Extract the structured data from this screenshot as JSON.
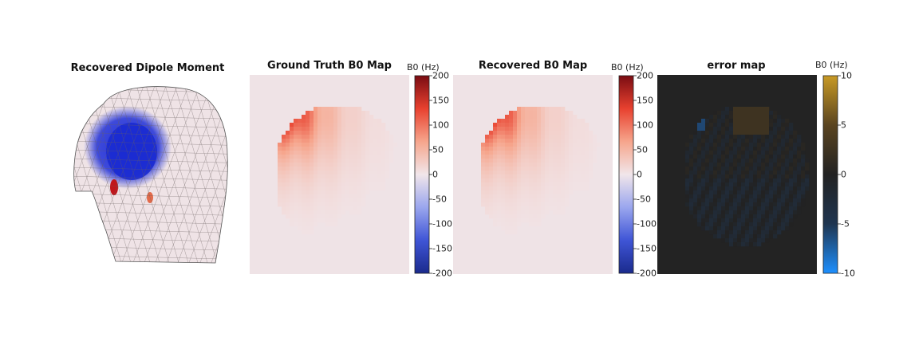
{
  "chart_data": [
    {
      "type": "other",
      "title": "Recovered Dipole Moment",
      "description_kind": "3d-head-mesh",
      "colors": {
        "mesh": "#efe3e6",
        "positive": "#c0161c",
        "negative": "#1f2fd8"
      }
    },
    {
      "type": "heatmap",
      "title": "Ground Truth B0 Map",
      "colorbar": {
        "label": "B0 (Hz)",
        "range": [
          -200,
          200
        ],
        "ticks": [
          200,
          150,
          100,
          50,
          0,
          -50,
          -100,
          -150,
          -200
        ],
        "colormap": [
          "#1a2a8c",
          "#3f55d6",
          "#9aa6ee",
          "#f1e6ea",
          "#f6a58c",
          "#e8412f",
          "#7a0c12"
        ]
      },
      "background_value": 0,
      "background_color": "#efe3e6"
    },
    {
      "type": "heatmap",
      "title": "Recovered B0 Map",
      "colorbar": {
        "label": "B0 (Hz)",
        "range": [
          -200,
          200
        ],
        "ticks": [
          200,
          150,
          100,
          50,
          0,
          -50,
          -100,
          -150,
          -200
        ],
        "colormap": [
          "#1a2a8c",
          "#3f55d6",
          "#9aa6ee",
          "#f1e6ea",
          "#f6a58c",
          "#e8412f",
          "#7a0c12"
        ]
      },
      "background_value": 0,
      "background_color": "#efe3e6"
    },
    {
      "type": "heatmap",
      "title": "error map",
      "colorbar": {
        "label": "B0 (Hz)",
        "range": [
          -10,
          10
        ],
        "ticks": [
          10,
          5,
          0,
          -5,
          -10
        ],
        "colormap": [
          "#1e90ff",
          "#1f3550",
          "#222222",
          "#5a4420",
          "#c89a24"
        ]
      },
      "background_value": 0,
      "background_color": "#232323"
    }
  ]
}
